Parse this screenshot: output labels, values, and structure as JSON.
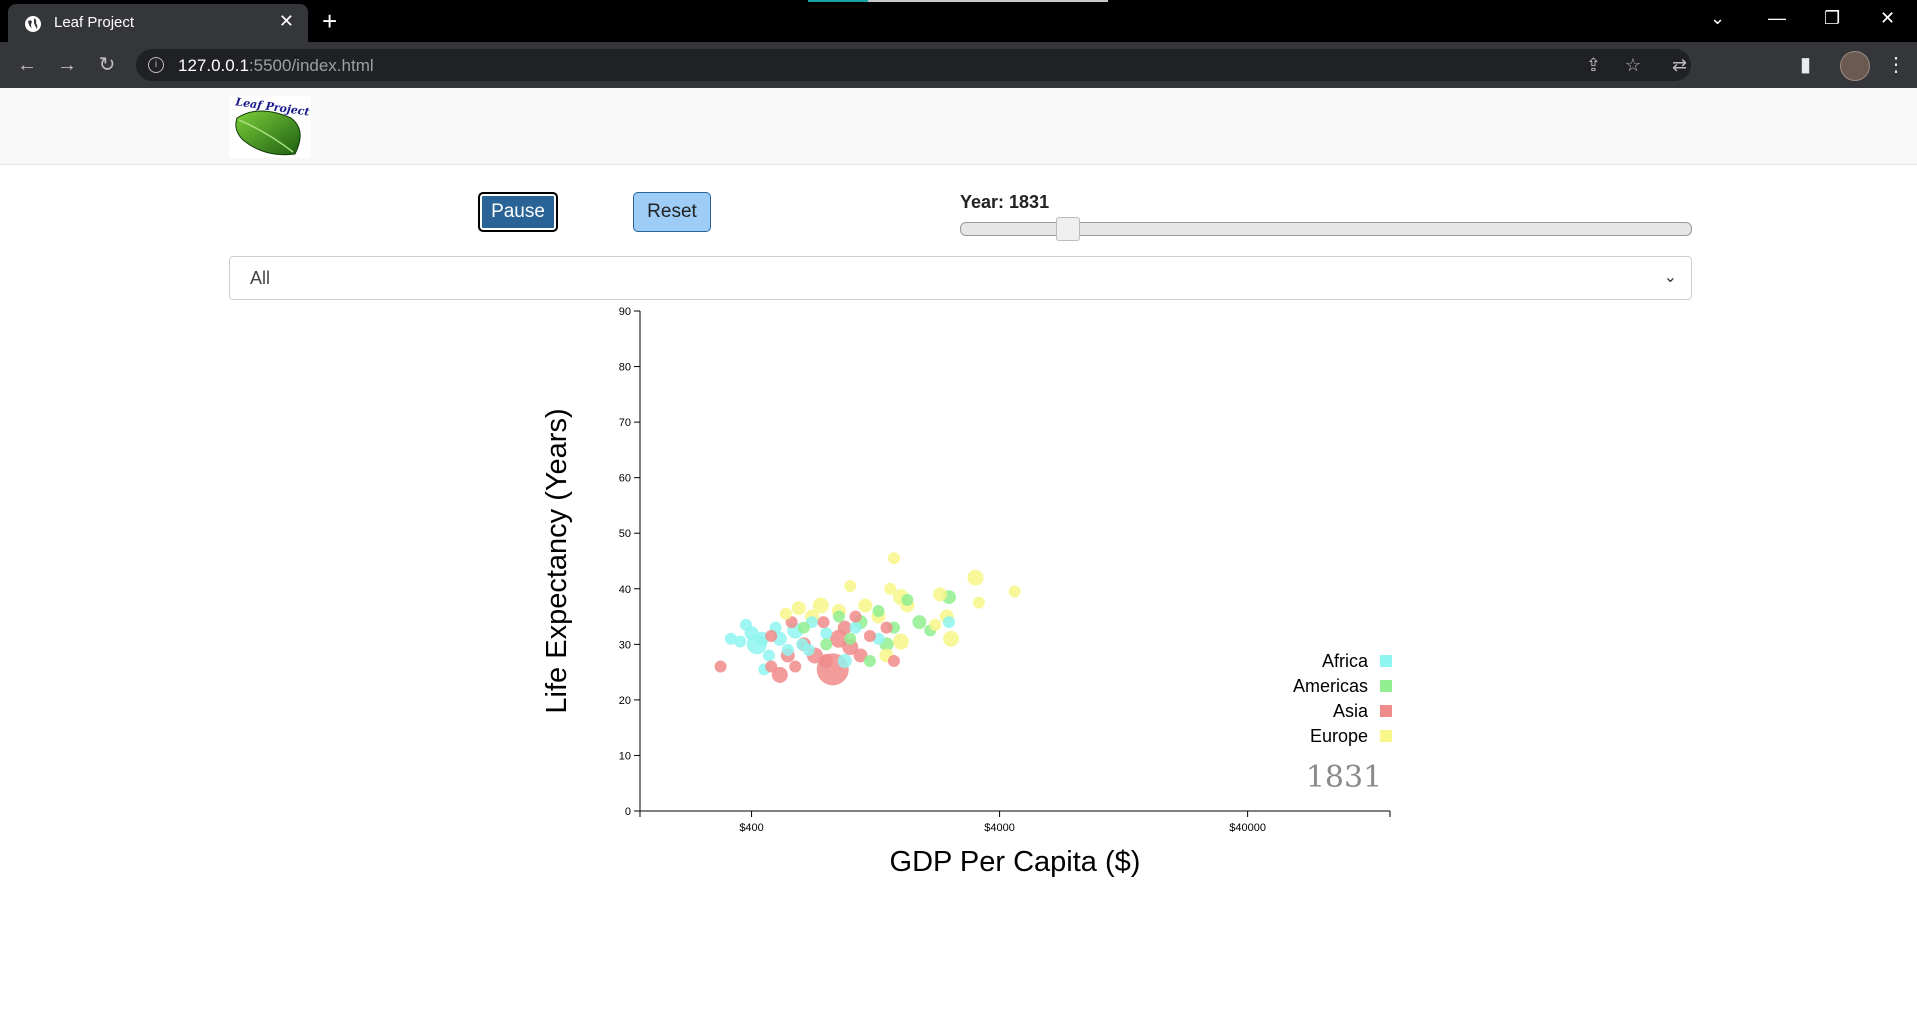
{
  "browser": {
    "tab_title": "Leaf Project",
    "url_host": "127.0.0.1",
    "url_path": ":5500/index.html"
  },
  "controls": {
    "pause_label": "Pause",
    "reset_label": "Reset",
    "year_label": "Year: 1831",
    "year_slider_fraction": 0.147,
    "filter_value": "All"
  },
  "logo": {
    "text": "Leaf Project"
  },
  "colors": {
    "Africa": "#8ff5f0",
    "Americas": "#90ee90",
    "Asia": "#f08b8b",
    "Europe": "#f7f78a"
  },
  "chart_data": {
    "type": "scatter",
    "xlabel": "GDP Per Capita ($)",
    "ylabel": "Life Expectancy (Years)",
    "x_scale": "log",
    "xlim": [
      142,
      150000
    ],
    "ylim": [
      0,
      90
    ],
    "x_ticks": [
      400,
      4000,
      40000
    ],
    "x_tick_labels": [
      "$400",
      "$4000",
      "$40000"
    ],
    "y_ticks": [
      0,
      10,
      20,
      30,
      40,
      50,
      60,
      70,
      80,
      90
    ],
    "year_watermark": "1831",
    "legend": [
      "Africa",
      "Americas",
      "Asia",
      "Europe"
    ],
    "legend_position": "bottom-right",
    "points": [
      {
        "c": "Africa",
        "x": 330,
        "y": 31,
        "r": 6
      },
      {
        "c": "Africa",
        "x": 360,
        "y": 30.5,
        "r": 6
      },
      {
        "c": "Africa",
        "x": 400,
        "y": 32,
        "r": 7
      },
      {
        "c": "Africa",
        "x": 420,
        "y": 30,
        "r": 10
      },
      {
        "c": "Africa",
        "x": 440,
        "y": 31,
        "r": 7
      },
      {
        "c": "Africa",
        "x": 470,
        "y": 28,
        "r": 6
      },
      {
        "c": "Africa",
        "x": 500,
        "y": 33,
        "r": 6
      },
      {
        "c": "Africa",
        "x": 520,
        "y": 31,
        "r": 7
      },
      {
        "c": "Africa",
        "x": 560,
        "y": 29,
        "r": 6
      },
      {
        "c": "Africa",
        "x": 600,
        "y": 32.5,
        "r": 8
      },
      {
        "c": "Africa",
        "x": 640,
        "y": 30,
        "r": 6
      },
      {
        "c": "Africa",
        "x": 700,
        "y": 34,
        "r": 6
      },
      {
        "c": "Africa",
        "x": 800,
        "y": 32,
        "r": 6
      },
      {
        "c": "Africa",
        "x": 950,
        "y": 27,
        "r": 7
      },
      {
        "c": "Africa",
        "x": 1050,
        "y": 33,
        "r": 6
      },
      {
        "c": "Africa",
        "x": 1300,
        "y": 31,
        "r": 6
      },
      {
        "c": "Africa",
        "x": 2500,
        "y": 34,
        "r": 6
      },
      {
        "c": "Africa",
        "x": 450,
        "y": 25.5,
        "r": 6
      },
      {
        "c": "Africa",
        "x": 380,
        "y": 33.5,
        "r": 6
      },
      {
        "c": "Africa",
        "x": 680,
        "y": 29,
        "r": 6
      },
      {
        "c": "Americas",
        "x": 900,
        "y": 35,
        "r": 6
      },
      {
        "c": "Americas",
        "x": 1100,
        "y": 34,
        "r": 7
      },
      {
        "c": "Americas",
        "x": 1300,
        "y": 36,
        "r": 6
      },
      {
        "c": "Americas",
        "x": 1500,
        "y": 33,
        "r": 6
      },
      {
        "c": "Americas",
        "x": 1700,
        "y": 38,
        "r": 6
      },
      {
        "c": "Americas",
        "x": 1900,
        "y": 34,
        "r": 7
      },
      {
        "c": "Americas",
        "x": 2100,
        "y": 32.5,
        "r": 6
      },
      {
        "c": "Americas",
        "x": 2500,
        "y": 38.5,
        "r": 7
      },
      {
        "c": "Americas",
        "x": 1200,
        "y": 27,
        "r": 6
      },
      {
        "c": "Americas",
        "x": 800,
        "y": 30,
        "r": 6
      },
      {
        "c": "Americas",
        "x": 1000,
        "y": 31,
        "r": 6
      },
      {
        "c": "Americas",
        "x": 1400,
        "y": 30,
        "r": 7
      },
      {
        "c": "Americas",
        "x": 650,
        "y": 33,
        "r": 6
      },
      {
        "c": "Asia",
        "x": 300,
        "y": 26,
        "r": 6
      },
      {
        "c": "Asia",
        "x": 480,
        "y": 26,
        "r": 6
      },
      {
        "c": "Asia",
        "x": 520,
        "y": 24.5,
        "r": 8
      },
      {
        "c": "Asia",
        "x": 560,
        "y": 28,
        "r": 7
      },
      {
        "c": "Asia",
        "x": 600,
        "y": 26,
        "r": 6
      },
      {
        "c": "Asia",
        "x": 650,
        "y": 30,
        "r": 7
      },
      {
        "c": "Asia",
        "x": 720,
        "y": 28,
        "r": 8
      },
      {
        "c": "Asia",
        "x": 800,
        "y": 27,
        "r": 7
      },
      {
        "c": "Asia",
        "x": 850,
        "y": 25.5,
        "r": 16
      },
      {
        "c": "Asia",
        "x": 900,
        "y": 31,
        "r": 9
      },
      {
        "c": "Asia",
        "x": 950,
        "y": 33,
        "r": 7
      },
      {
        "c": "Asia",
        "x": 1000,
        "y": 29.5,
        "r": 8
      },
      {
        "c": "Asia",
        "x": 1100,
        "y": 28,
        "r": 7
      },
      {
        "c": "Asia",
        "x": 1200,
        "y": 31.5,
        "r": 6
      },
      {
        "c": "Asia",
        "x": 1500,
        "y": 27,
        "r": 6
      },
      {
        "c": "Asia",
        "x": 1400,
        "y": 33,
        "r": 6
      },
      {
        "c": "Asia",
        "x": 480,
        "y": 31.5,
        "r": 6
      },
      {
        "c": "Asia",
        "x": 580,
        "y": 34,
        "r": 6
      },
      {
        "c": "Asia",
        "x": 780,
        "y": 34,
        "r": 6
      },
      {
        "c": "Asia",
        "x": 1050,
        "y": 35,
        "r": 6
      },
      {
        "c": "Europe",
        "x": 550,
        "y": 35.5,
        "r": 6
      },
      {
        "c": "Europe",
        "x": 620,
        "y": 36.5,
        "r": 7
      },
      {
        "c": "Europe",
        "x": 700,
        "y": 35,
        "r": 7
      },
      {
        "c": "Europe",
        "x": 760,
        "y": 37,
        "r": 8
      },
      {
        "c": "Europe",
        "x": 900,
        "y": 36,
        "r": 7
      },
      {
        "c": "Europe",
        "x": 1000,
        "y": 40.5,
        "r": 6
      },
      {
        "c": "Europe",
        "x": 1150,
        "y": 37,
        "r": 7
      },
      {
        "c": "Europe",
        "x": 1300,
        "y": 35,
        "r": 7
      },
      {
        "c": "Europe",
        "x": 1450,
        "y": 40,
        "r": 6
      },
      {
        "c": "Europe",
        "x": 1600,
        "y": 38.5,
        "r": 8
      },
      {
        "c": "Europe",
        "x": 1700,
        "y": 37,
        "r": 7
      },
      {
        "c": "Europe",
        "x": 1500,
        "y": 45.5,
        "r": 6
      },
      {
        "c": "Europe",
        "x": 2300,
        "y": 39,
        "r": 7
      },
      {
        "c": "Europe",
        "x": 2450,
        "y": 35,
        "r": 7
      },
      {
        "c": "Europe",
        "x": 2550,
        "y": 31,
        "r": 8
      },
      {
        "c": "Europe",
        "x": 3200,
        "y": 42,
        "r": 8
      },
      {
        "c": "Europe",
        "x": 3300,
        "y": 37.5,
        "r": 6
      },
      {
        "c": "Europe",
        "x": 4600,
        "y": 39.5,
        "r": 6
      },
      {
        "c": "Europe",
        "x": 1600,
        "y": 30.5,
        "r": 8
      },
      {
        "c": "Europe",
        "x": 1400,
        "y": 28,
        "r": 7
      },
      {
        "c": "Europe",
        "x": 2200,
        "y": 33.5,
        "r": 6
      }
    ]
  }
}
